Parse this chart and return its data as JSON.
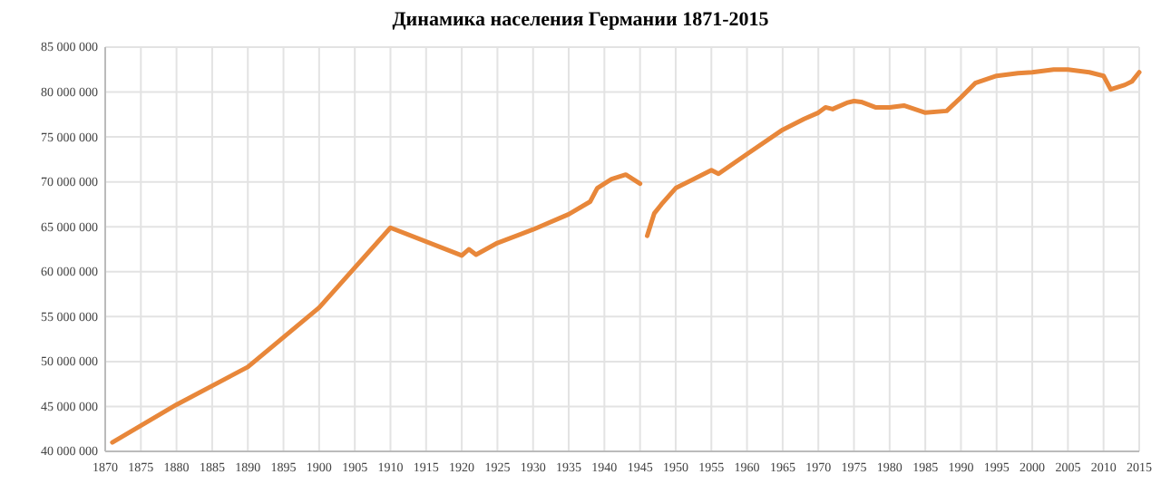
{
  "chart_data": {
    "type": "line",
    "title": "Динамика населения Германии 1871-2015",
    "x": [
      1871,
      1880,
      1890,
      1900,
      1910,
      1920,
      1921,
      1922,
      1925,
      1930,
      1935,
      1938,
      1939,
      1941,
      1943,
      1945,
      1945.5,
      1946,
      1947,
      1948,
      1950,
      1955,
      1956,
      1960,
      1965,
      1968,
      1970,
      1971,
      1972,
      1974,
      1975,
      1976,
      1978,
      1980,
      1982,
      1985,
      1988,
      1990,
      1992,
      1995,
      1998,
      2000,
      2003,
      2005,
      2008,
      2010,
      2011,
      2013,
      2014,
      2015
    ],
    "series": [
      {
        "color": "#e8873a",
        "values": [
          41000000,
          45200000,
          49400000,
          56000000,
          64900000,
          61800000,
          62500000,
          61900000,
          63200000,
          64700000,
          66400000,
          67800000,
          69300000,
          70300000,
          70800000,
          69800000,
          null,
          64000000,
          66500000,
          67500000,
          69300000,
          71300000,
          70900000,
          73100000,
          75800000,
          77000000,
          77700000,
          78300000,
          78100000,
          78800000,
          79000000,
          78900000,
          78300000,
          78300000,
          78500000,
          77700000,
          77900000,
          79400000,
          81000000,
          81800000,
          82100000,
          82200000,
          82500000,
          82500000,
          82200000,
          81800000,
          80300000,
          80800000,
          81200000,
          82200000
        ]
      }
    ],
    "xlim": [
      1870,
      2015
    ],
    "xticks": [
      1870,
      1875,
      1880,
      1885,
      1890,
      1895,
      1900,
      1905,
      1910,
      1915,
      1920,
      1925,
      1930,
      1935,
      1940,
      1945,
      1950,
      1955,
      1960,
      1965,
      1970,
      1975,
      1980,
      1985,
      1990,
      1995,
      2000,
      2005,
      2010,
      2015
    ],
    "ylim": [
      40000000,
      85000000
    ],
    "yticks": [
      {
        "value": 40000000,
        "label": "40 000 000"
      },
      {
        "value": 45000000,
        "label": "45 000 000"
      },
      {
        "value": 50000000,
        "label": "50 000 000"
      },
      {
        "value": 55000000,
        "label": "55 000 000"
      },
      {
        "value": 60000000,
        "label": "60 000 000"
      },
      {
        "value": 65000000,
        "label": "65 000 000"
      },
      {
        "value": 70000000,
        "label": "70 000 000"
      },
      {
        "value": 75000000,
        "label": "75 000 000"
      },
      {
        "value": 80000000,
        "label": "80 000 000"
      },
      {
        "value": 85000000,
        "label": "85 000 000"
      }
    ],
    "grid": true,
    "marker": "none",
    "line_style": "solid"
  }
}
